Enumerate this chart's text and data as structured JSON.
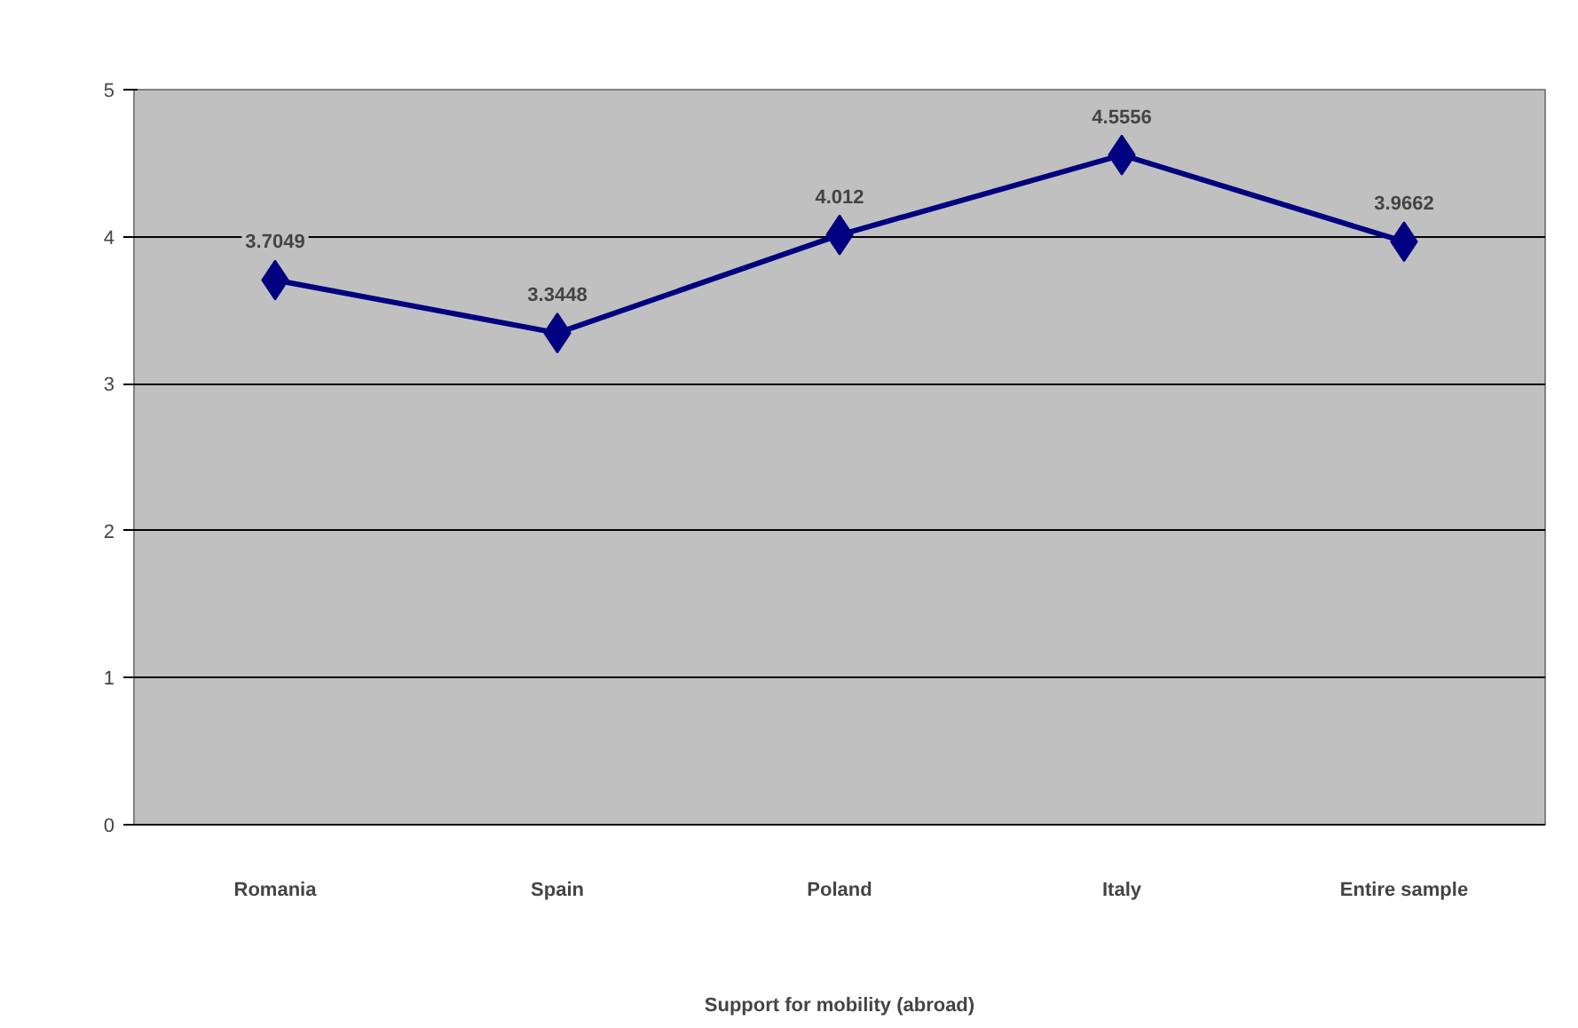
{
  "chart_data": {
    "type": "line",
    "xlabel": "Support for mobility (abroad)",
    "categories": [
      "Romania",
      "Spain",
      "Poland",
      "Italy",
      "Entire sample"
    ],
    "series": [
      {
        "color": "#000080",
        "values": [
          3.7049,
          3.3448,
          4.012,
          4.5556,
          3.9662
        ]
      }
    ],
    "ylim": [
      0,
      5
    ],
    "yticks": [
      0,
      1,
      2,
      3,
      4,
      5
    ],
    "grid": "y",
    "marker": "diamond",
    "data_labels": true,
    "line_style": "solid"
  }
}
